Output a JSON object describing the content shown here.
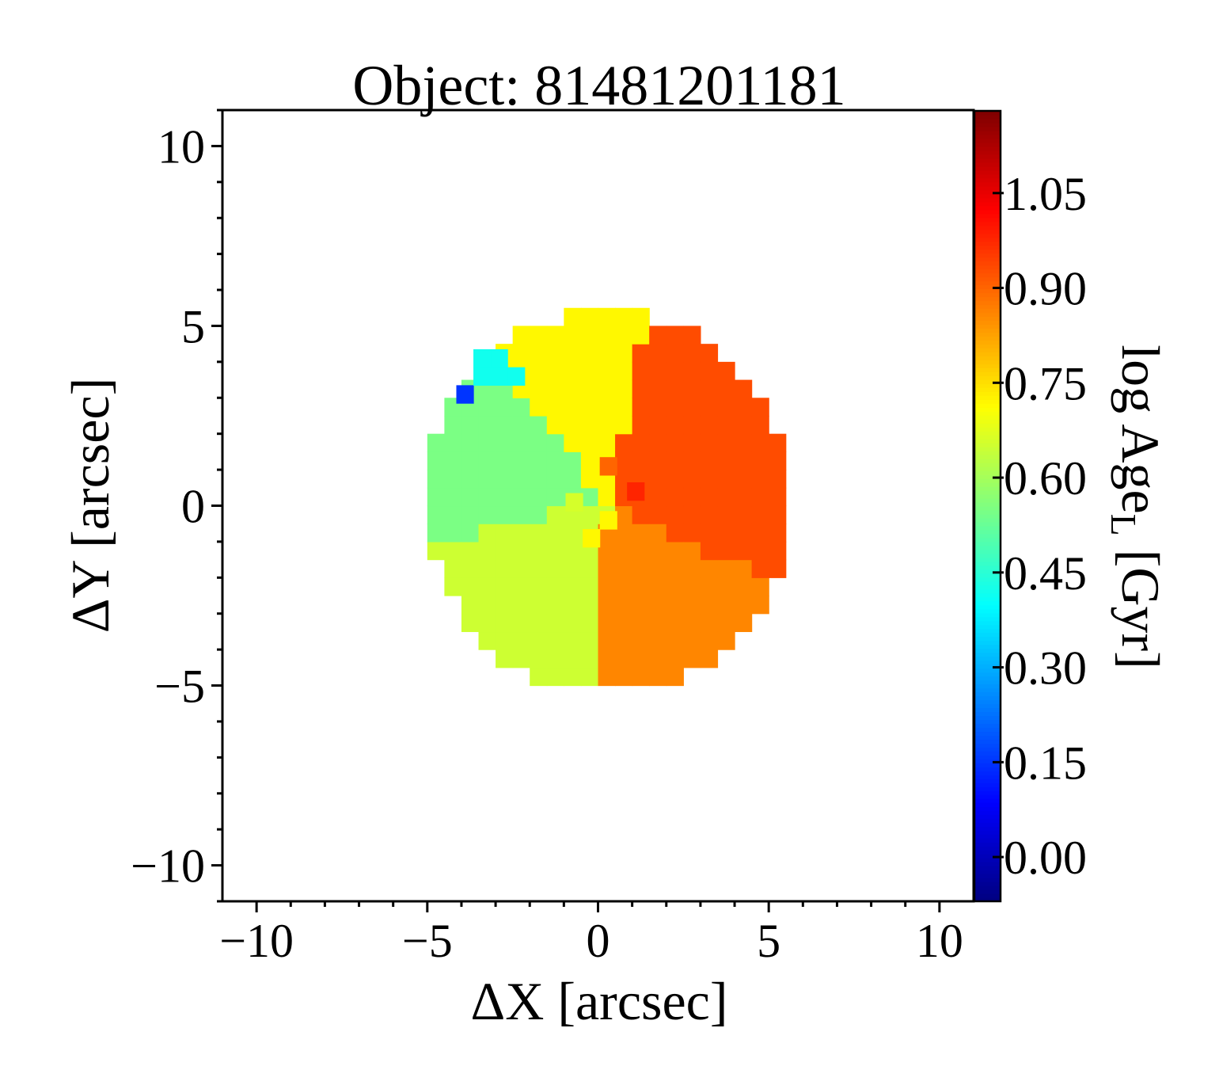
{
  "chart_data": {
    "type": "heatmap",
    "title": "Object: 81481201181",
    "xlabel": "ΔX [arcsec]",
    "ylabel": "ΔY [arcsec]",
    "colorbar_label_main": "log Age",
    "colorbar_label_sub": "L",
    "colorbar_label_unit": " [Gyr]",
    "xlim": [
      -11,
      11
    ],
    "ylim": [
      -11,
      11
    ],
    "x_ticks": [
      -10,
      -5,
      0,
      5,
      10
    ],
    "x_tick_labels": [
      "−10",
      "−5",
      "0",
      "5",
      "10"
    ],
    "y_ticks": [
      -10,
      -5,
      0,
      5,
      10
    ],
    "y_tick_labels": [
      "−10",
      "−5",
      "0",
      "5",
      "10"
    ],
    "colorbar_range": [
      -0.07,
      1.18
    ],
    "colorbar_ticks": [
      0.0,
      0.15,
      0.3,
      0.45,
      0.6,
      0.75,
      0.9,
      1.05
    ],
    "colorbar_tick_labels": [
      "0.00",
      "0.15",
      "0.30",
      "0.45",
      "0.60",
      "0.75",
      "0.90",
      "1.05"
    ],
    "colormap": "jet",
    "map_center_arcsec": [
      0.3,
      0.1
    ],
    "map_radius_arcsec": 5.35,
    "pixel_size_arcsec": 0.5,
    "background_color": "#ffffff",
    "regions": [
      {
        "name": "north",
        "start_angle_deg": 78,
        "end_angle_deg": 132,
        "value": 0.72
      },
      {
        "name": "northwest",
        "start_angle_deg": 132,
        "end_angle_deg": 192,
        "value": 0.55
      },
      {
        "name": "southwest",
        "start_angle_deg": 192,
        "end_angle_deg": 265,
        "value": 0.65
      },
      {
        "name": "south",
        "start_angle_deg": 265,
        "end_angle_deg": 335,
        "value": 0.86
      },
      {
        "name": "east",
        "start_angle_deg": 335,
        "end_angle_deg": 438,
        "value": 0.93
      }
    ],
    "special_pixels": [
      {
        "x": -3.9,
        "y": 3.1,
        "value": 0.15
      },
      {
        "x": -3.4,
        "y": 3.6,
        "value": 0.42
      },
      {
        "x": -2.9,
        "y": 3.6,
        "value": 0.42
      },
      {
        "x": -2.9,
        "y": 4.1,
        "value": 0.42
      },
      {
        "x": -3.4,
        "y": 4.1,
        "value": 0.42
      },
      {
        "x": -2.4,
        "y": 3.6,
        "value": 0.42
      },
      {
        "x": 1.1,
        "y": 0.4,
        "value": 0.98
      },
      {
        "x": 0.3,
        "y": -0.4,
        "value": 0.72
      },
      {
        "x": -0.2,
        "y": -0.9,
        "value": 0.72
      },
      {
        "x": 0.3,
        "y": 1.1,
        "value": 0.9
      },
      {
        "x": -0.7,
        "y": 0.1,
        "value": 0.66
      }
    ]
  }
}
